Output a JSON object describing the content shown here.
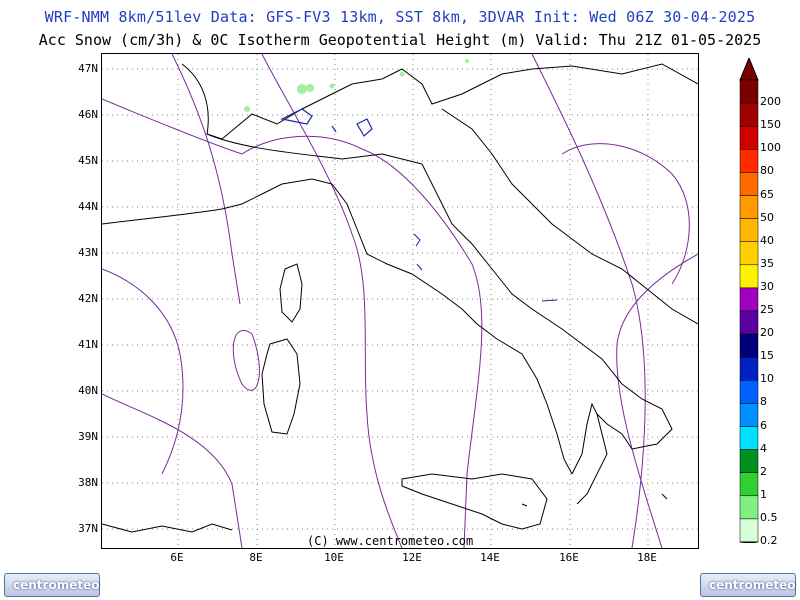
{
  "header": {
    "line1": "WRF-NMM 8km/51lev  Data: GFS-FV3 13km, SST 8km, 3DVAR  Init: Wed 06Z 30-04-2025",
    "line2": "Acc Snow (cm/3h) & 0C Isotherm Geopotential Height (m)  Valid: Thu 21Z 01-05-2025"
  },
  "map": {
    "lat_labels": [
      "47N",
      "46N",
      "45N",
      "44N",
      "43N",
      "42N",
      "41N",
      "40N",
      "39N",
      "38N",
      "37N"
    ],
    "lon_labels": [
      "6E",
      "8E",
      "10E",
      "12E",
      "14E",
      "16E",
      "18E"
    ],
    "copyright": "(C) www.centrometeo.com"
  },
  "colorbar": {
    "labels": [
      "200",
      "150",
      "100",
      "80",
      "65",
      "50",
      "40",
      "35",
      "30",
      "25",
      "20",
      "15",
      "10",
      "8",
      "6",
      "4",
      "2",
      "1",
      "0.5",
      "0.2"
    ],
    "colors": [
      "#7a0000",
      "#a00000",
      "#d00000",
      "#ff2a00",
      "#ff6a00",
      "#ff9a00",
      "#ffb800",
      "#ffd000",
      "#fff200",
      "#a000c0",
      "#5a00a0",
      "#00007a",
      "#0020c0",
      "#0060ff",
      "#0090ff",
      "#00e0ff",
      "#009020",
      "#30d030",
      "#80f080",
      "#d8ffd8"
    ]
  },
  "logos": {
    "left": "centrometeo",
    "right": "centrometeo"
  }
}
